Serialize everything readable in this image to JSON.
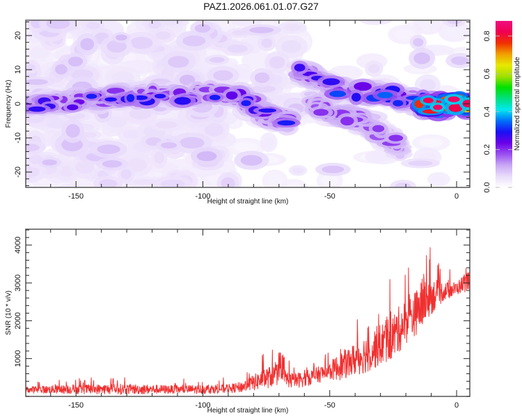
{
  "title": "PAZ1.2026.061.01.07.G27",
  "chart_data": [
    {
      "type": "heatmap",
      "name": "spectrogram",
      "title": "PAZ1.2026.061.01.07.G27",
      "xlabel": "Height of straight line (km)",
      "ylabel": "Frequency (Hz)",
      "xlim": [
        -169.8,
        5.2
      ],
      "ylim": [
        -24.5,
        24.5
      ],
      "xticks": [
        -150,
        -100,
        -50,
        0
      ],
      "xtick_labels": [
        "-150",
        "-100",
        "-50",
        "0"
      ],
      "xminor_step": 10,
      "yticks": [
        -20,
        -10,
        0,
        10,
        20
      ],
      "ytick_labels": [
        "-20",
        "-10",
        "0",
        "10",
        "20"
      ],
      "yminor_step": 2,
      "colorbar": {
        "label": "Normalized spectral amplitude",
        "range": [
          0,
          0.88
        ],
        "ticks": [
          0.0,
          0.2,
          0.4,
          0.6,
          0.8
        ],
        "tick_labels": [
          "0.0",
          "0.2",
          "0.4",
          "0.6",
          "0.8"
        ],
        "colormap": [
          "#ffffff",
          "#e9dcfb",
          "#c9a8f5",
          "#9a4ff0",
          "#6a00e8",
          "#1a10f5",
          "#0070f8",
          "#00e8f0",
          "#00e080",
          "#00e000",
          "#a0e000",
          "#e8e800",
          "#f0a000",
          "#f03000",
          "#f00050",
          "#f01080"
        ]
      },
      "features": [
        {
          "desc": "main signal ridge",
          "x": [
            -170,
            -150,
            -130,
            -110,
            -95,
            -85,
            -78,
            -70,
            -65
          ],
          "y": [
            -0.5,
            0.5,
            2.5,
            2.5,
            2.5,
            2.0,
            -1.5,
            -4.5,
            -5.5
          ],
          "peak_amp": 0.3
        },
        {
          "desc": "upper branch",
          "x": [
            -62,
            -55,
            -48,
            -40,
            -32,
            -25,
            -18,
            -12,
            -5,
            0,
            5
          ],
          "y": [
            9.5,
            7.0,
            4.5,
            3.5,
            3.0,
            2.5,
            0.5,
            -0.5,
            -0.5,
            0.5,
            -0.5
          ],
          "peak_amp": 0.88
        },
        {
          "desc": "lower branch",
          "x": [
            -58,
            -50,
            -42,
            -35,
            -30,
            -25,
            -22
          ],
          "y": [
            1.0,
            -3.0,
            -3.5,
            -6.0,
            -9.0,
            -11.0,
            -13.0
          ],
          "peak_amp": 0.3
        }
      ],
      "background_noise_region": {
        "x": [
          -170,
          -90
        ],
        "amp_range": [
          0.0,
          0.1
        ]
      }
    },
    {
      "type": "line",
      "name": "snr",
      "xlabel": "Height of straight line (km)",
      "ylabel": "SNR (10 * v/v)",
      "xlim": [
        -169.8,
        5.2
      ],
      "ylim": [
        0,
        4420
      ],
      "xticks": [
        -150,
        -100,
        -50,
        0
      ],
      "xtick_labels": [
        "-150",
        "-100",
        "-50",
        "0"
      ],
      "xminor_step": 10,
      "yticks": [
        1000,
        2000,
        3000,
        4000
      ],
      "ytick_labels": [
        "1000",
        "2000",
        "3000",
        "4000"
      ],
      "yminor_step": 200,
      "color": "#f03030",
      "envelope": {
        "x": [
          -170,
          -150,
          -130,
          -110,
          -100,
          -90,
          -85,
          -80,
          -75,
          -70,
          -65,
          -60,
          -55,
          -50,
          -45,
          -40,
          -35,
          -30,
          -25,
          -20,
          -15,
          -13,
          -10,
          -5,
          0,
          5
        ],
        "baseline": [
          150,
          150,
          150,
          150,
          150,
          170,
          200,
          300,
          400,
          500,
          350,
          400,
          500,
          600,
          700,
          850,
          1000,
          1200,
          1400,
          1800,
          2100,
          2300,
          2500,
          2700,
          2800,
          3000
        ],
        "peak": [
          400,
          500,
          550,
          450,
          500,
          500,
          600,
          900,
          1200,
          1300,
          900,
          1000,
          1100,
          1300,
          1800,
          2100,
          2500,
          2800,
          3200,
          3500,
          3800,
          4400,
          3900,
          3400,
          3300,
          3800
        ]
      }
    }
  ]
}
